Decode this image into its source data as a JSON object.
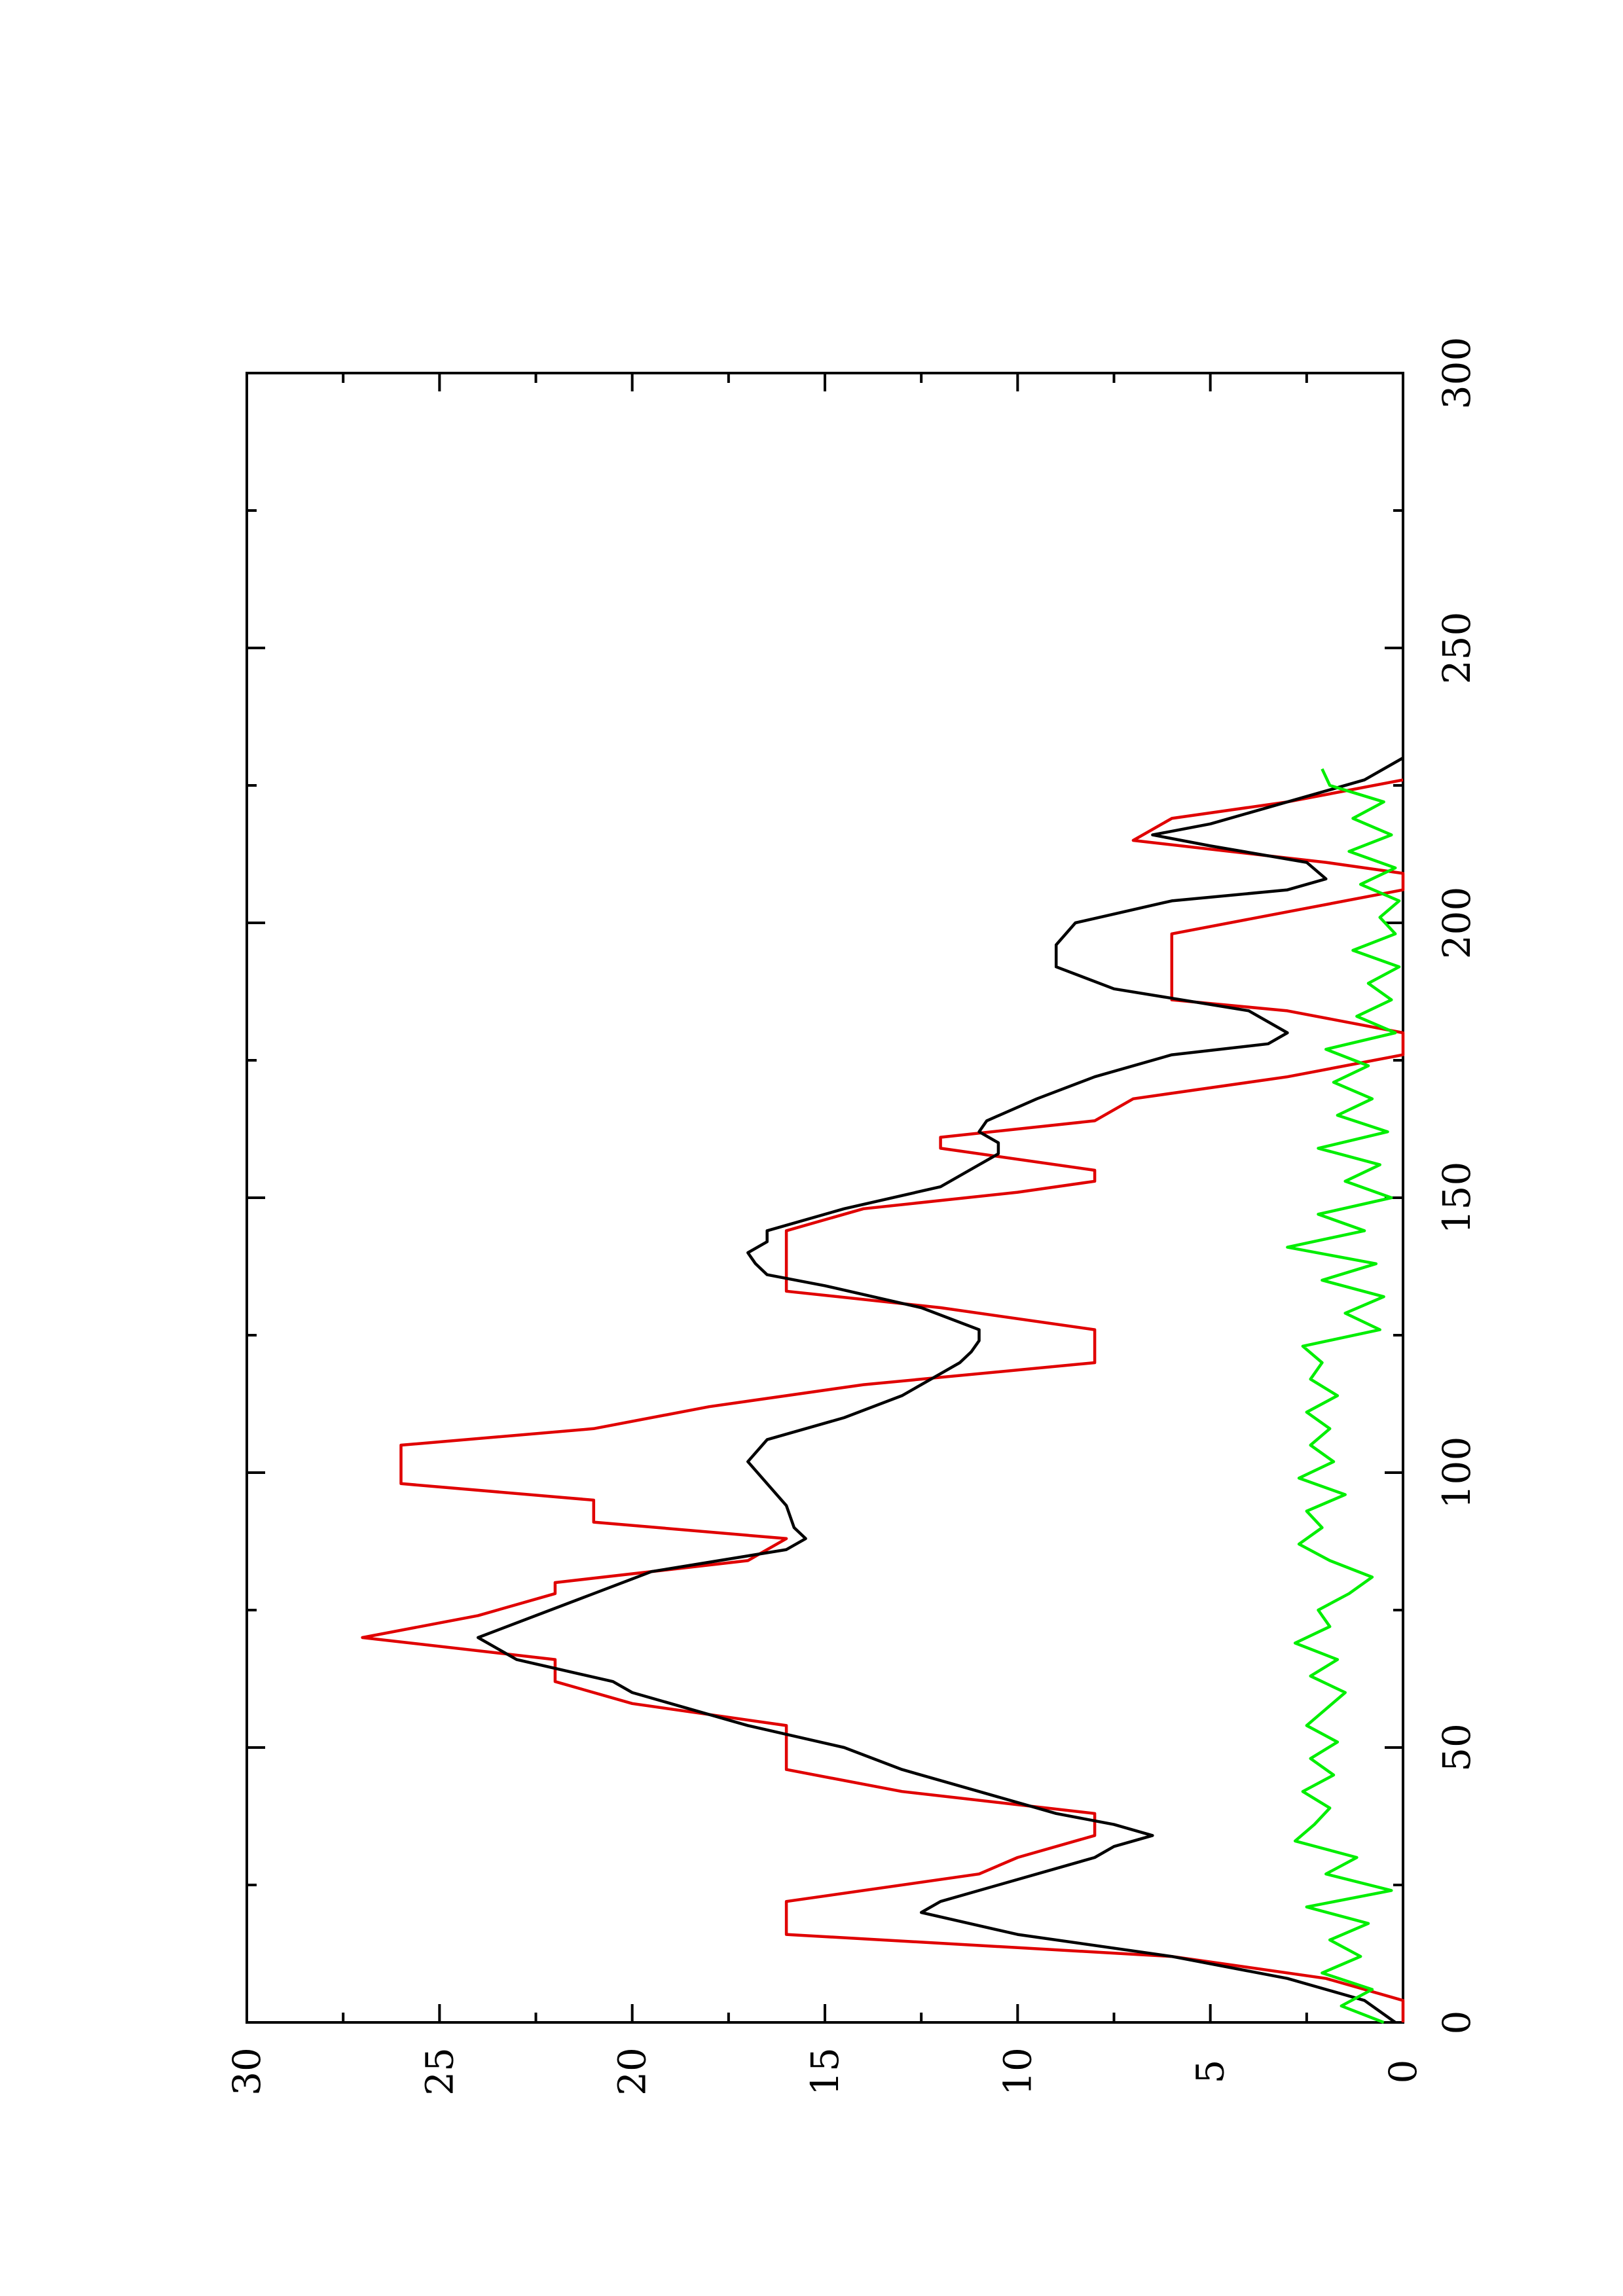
{
  "chart_data": {
    "type": "line",
    "orientation": "rotated-90-ccw",
    "title": "",
    "xlabel": "",
    "ylabel": "",
    "xlim": [
      0,
      300
    ],
    "ylim": [
      0,
      30
    ],
    "xticks_major": [
      0,
      50,
      100,
      150,
      200,
      250,
      300
    ],
    "xticks_minor": [
      25,
      75,
      125,
      175,
      225,
      275
    ],
    "yticks_major": [
      0,
      5,
      10,
      15,
      20,
      25,
      30
    ],
    "yticks_minor": [
      2.5,
      7.5,
      12.5,
      17.5,
      22.5,
      27.5
    ],
    "grid": false,
    "legend": "none",
    "series": [
      {
        "color": "#e00000",
        "x": [
          0,
          4,
          8,
          12,
          16,
          22,
          27,
          30,
          34,
          38,
          42,
          46,
          50,
          54,
          58,
          62,
          66,
          70,
          74,
          78,
          80,
          84,
          88,
          91,
          95,
          98,
          102,
          105,
          108,
          112,
          116,
          120,
          122,
          126,
          130,
          133,
          137,
          141,
          144,
          148,
          151,
          153,
          155,
          159,
          161,
          164,
          168,
          172,
          176,
          180,
          184,
          186,
          190,
          194,
          198,
          202,
          206,
          209,
          211,
          215,
          219,
          222,
          226
        ],
        "y": [
          0,
          0,
          2,
          6,
          16,
          16,
          11,
          10,
          8,
          8,
          13,
          16,
          16,
          16,
          20,
          22,
          22,
          27,
          24,
          22,
          22,
          17,
          16,
          21,
          21,
          26,
          26,
          26,
          21,
          18,
          14,
          8,
          8,
          8,
          12,
          16,
          16,
          16,
          16,
          14,
          10,
          8,
          8,
          12,
          12,
          8,
          7,
          3,
          0,
          0,
          3,
          6,
          6,
          6,
          6,
          3,
          0,
          0,
          2,
          7,
          6,
          3,
          0
        ]
      },
      {
        "color": "#000000",
        "x": [
          0,
          4,
          8,
          12,
          16,
          20,
          22,
          25,
          28,
          30,
          32,
          34,
          36,
          38,
          42,
          46,
          50,
          54,
          58,
          60,
          62,
          66,
          70,
          74,
          78,
          82,
          86,
          88,
          90,
          94,
          98,
          102,
          106,
          110,
          114,
          118,
          120,
          122,
          124,
          126,
          130,
          134,
          136,
          138,
          140,
          142,
          144,
          148,
          152,
          156,
          158,
          160,
          162,
          164,
          168,
          172,
          176,
          178,
          180,
          184,
          188,
          192,
          196,
          200,
          204,
          206,
          208,
          211,
          214,
          216,
          218,
          222,
          226,
          230
        ],
        "y": [
          0.2,
          1,
          3,
          6,
          10,
          12.5,
          12,
          10.5,
          9,
          8,
          7.5,
          6.5,
          7.5,
          9,
          11,
          13,
          14.5,
          17,
          19,
          20,
          20.5,
          23,
          24,
          22.5,
          21,
          19.5,
          16,
          15.5,
          15.8,
          16,
          16.5,
          17,
          16.5,
          14.5,
          13,
          12,
          11.5,
          11.2,
          11,
          11,
          12.5,
          15,
          16.5,
          16.8,
          17,
          16.5,
          16.5,
          14.5,
          12,
          11,
          10.5,
          10.5,
          11,
          10.8,
          9.5,
          8,
          6,
          3.5,
          3,
          4,
          7.5,
          9,
          9,
          8.5,
          6,
          3,
          2,
          2.5,
          5,
          6.5,
          5,
          3,
          1,
          0
        ]
      },
      {
        "color": "#00ee00",
        "x": [
          0,
          3,
          6,
          9,
          12,
          15,
          18,
          21,
          24,
          27,
          30,
          33,
          36,
          39,
          42,
          45,
          48,
          51,
          54,
          57,
          60,
          63,
          66,
          69,
          72,
          75,
          78,
          81,
          84,
          87,
          90,
          93,
          96,
          99,
          102,
          105,
          108,
          111,
          114,
          117,
          120,
          123,
          126,
          129,
          132,
          135,
          138,
          141,
          144,
          147,
          150,
          153,
          156,
          159,
          162,
          165,
          168,
          171,
          174,
          177,
          180,
          183,
          186,
          189,
          192,
          195,
          198,
          201,
          204,
          207,
          210,
          213,
          216,
          219,
          222,
          225,
          228
        ],
        "y": [
          0.5,
          1.6,
          0.8,
          2.1,
          1.1,
          1.9,
          0.9,
          2.5,
          0.3,
          2.0,
          1.2,
          2.8,
          2.3,
          1.9,
          2.6,
          1.8,
          2.4,
          1.7,
          2.5,
          2.0,
          1.5,
          2.4,
          1.7,
          2.8,
          1.9,
          2.2,
          1.4,
          0.8,
          1.9,
          2.7,
          2.1,
          2.5,
          1.5,
          2.7,
          1.8,
          2.4,
          1.9,
          2.5,
          1.7,
          2.4,
          2.1,
          2.6,
          0.6,
          1.5,
          0.5,
          2.1,
          0.7,
          3.0,
          1.0,
          2.2,
          0.3,
          1.5,
          0.6,
          2.2,
          0.4,
          1.7,
          0.8,
          1.8,
          0.9,
          2.0,
          0.2,
          1.2,
          0.3,
          0.9,
          0.1,
          1.3,
          0.2,
          0.6,
          0.1,
          1.1,
          0.2,
          1.4,
          0.3,
          1.3,
          0.5,
          1.9,
          2.1
        ]
      }
    ]
  }
}
